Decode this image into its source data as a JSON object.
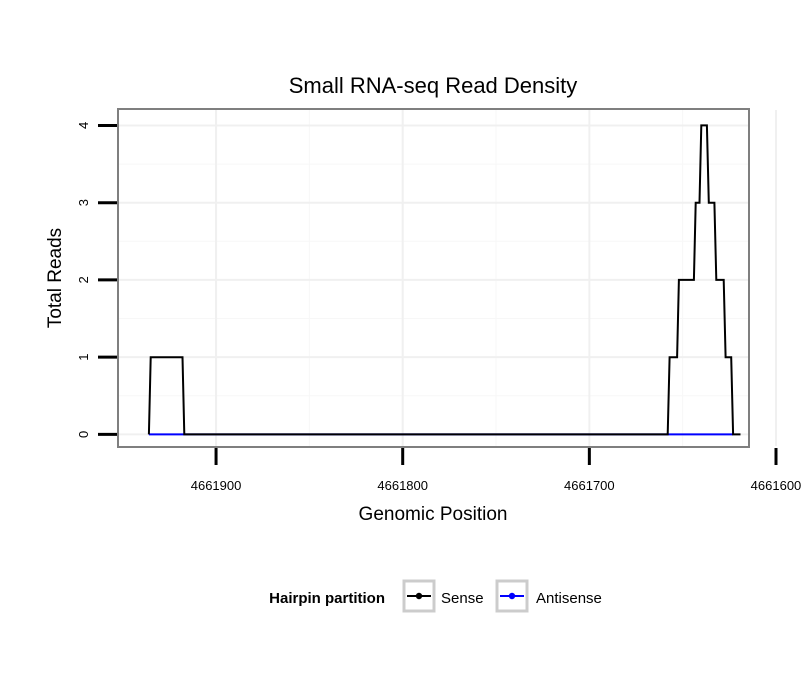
{
  "chart_data": {
    "type": "line",
    "title": "Small RNA-seq Read Density",
    "xlabel": "Genomic Position",
    "ylabel": "Total Reads",
    "x_reversed": true,
    "xlim": [
      4661952,
      4661615
    ],
    "ylim": [
      -0.15,
      4.2
    ],
    "x_ticks": [
      4661900,
      4661800,
      4661700,
      4661600
    ],
    "x_tick_labels": [
      "4661900",
      "4661800",
      "4661700",
      "4661600"
    ],
    "y_ticks": [
      0,
      1,
      2,
      3,
      4
    ],
    "y_tick_labels": [
      "0",
      "1",
      "2",
      "3",
      "4"
    ],
    "grid": true,
    "legend": {
      "title": "Hairpin partition",
      "position": "bottom",
      "entries": [
        "Sense",
        "Antisense"
      ]
    },
    "series": [
      {
        "name": "Sense",
        "color": "#000000",
        "points": [
          [
            4661936,
            0
          ],
          [
            4661935,
            1
          ],
          [
            4661918,
            1
          ],
          [
            4661917,
            0
          ],
          [
            4661658,
            0
          ],
          [
            4661657,
            1
          ],
          [
            4661653,
            1
          ],
          [
            4661652,
            2
          ],
          [
            4661644,
            2
          ],
          [
            4661643,
            3
          ],
          [
            4661641,
            3
          ],
          [
            4661640,
            4
          ],
          [
            4661637,
            4
          ],
          [
            4661636,
            3
          ],
          [
            4661633,
            3
          ],
          [
            4661632,
            2
          ],
          [
            4661628,
            2
          ],
          [
            4661627,
            1
          ],
          [
            4661624,
            1
          ],
          [
            4661623,
            0
          ],
          [
            4661619,
            0
          ]
        ]
      },
      {
        "name": "Antisense",
        "color": "#0000ff",
        "points": [
          [
            4661936,
            0
          ],
          [
            4661917,
            0
          ],
          [
            4661658,
            0
          ],
          [
            4661623,
            0
          ]
        ]
      }
    ]
  }
}
